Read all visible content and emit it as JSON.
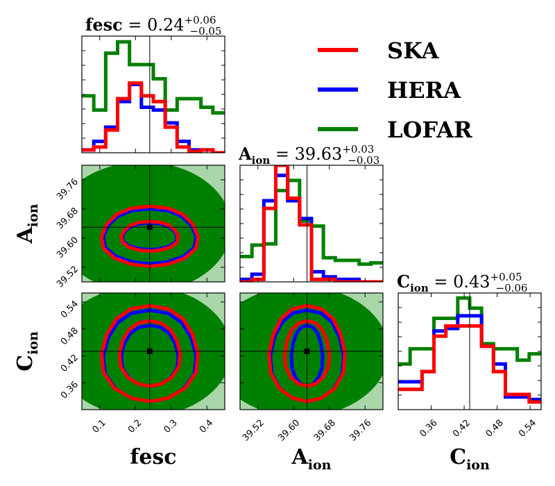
{
  "chart_data": {
    "type": "corner",
    "parameters": [
      {
        "name": "fesc",
        "sub": "",
        "range": [
          0.05,
          0.45
        ],
        "ticks": [
          "0.1",
          "0.2",
          "0.3",
          "0.4"
        ],
        "tick_values": [
          0.1,
          0.2,
          0.3,
          0.4
        ],
        "truth": 0.24,
        "title_value": "0.24",
        "err_plus": "+0.06",
        "err_minus": "−0.05"
      },
      {
        "name": "A",
        "sub": "ion",
        "range": [
          39.48,
          39.8
        ],
        "ticks": [
          "39.52",
          "39.60",
          "39.68",
          "39.76"
        ],
        "tick_values": [
          39.52,
          39.6,
          39.68,
          39.76
        ],
        "truth": 39.63,
        "title_value": "39.63",
        "err_plus": "+0.03",
        "err_minus": "−0.03"
      },
      {
        "name": "C",
        "sub": "ion",
        "range": [
          0.3,
          0.56
        ],
        "ticks": [
          "0.36",
          "0.42",
          "0.48",
          "0.54"
        ],
        "tick_values": [
          0.36,
          0.42,
          0.48,
          0.54
        ],
        "truth": 0.43,
        "title_value": "0.43",
        "err_plus": "+0.05",
        "err_minus": "−0.06"
      }
    ],
    "legend": [
      {
        "name": "SKA",
        "color": "#ff0000"
      },
      {
        "name": "HERA",
        "color": "#0000ff"
      },
      {
        "name": "LOFAR",
        "color": "#008000"
      }
    ],
    "marginals": [
      {
        "bins": 12,
        "series": [
          {
            "name": "LOFAR",
            "color": "#008000",
            "heights": [
              0.4,
              0.3,
              0.7,
              0.78,
              0.62,
              0.62,
              0.52,
              0.3,
              0.38,
              0.38,
              0.32,
              0.28
            ]
          },
          {
            "name": "HERA",
            "color": "#0000ff",
            "heights": [
              0.02,
              0.08,
              0.18,
              0.36,
              0.48,
              0.32,
              0.3,
              0.21,
              0.08,
              0.02,
              0.02,
              0.0
            ]
          },
          {
            "name": "SKA",
            "color": "#ff0000",
            "heights": [
              0.02,
              0.04,
              0.16,
              0.38,
              0.49,
              0.4,
              0.36,
              0.18,
              0.04,
              0.01,
              0.02,
              0.0
            ]
          }
        ],
        "ymax": 0.82
      },
      {
        "bins": 12,
        "series": [
          {
            "name": "LOFAR",
            "color": "#008000",
            "heights": [
              0.2,
              0.29,
              0.3,
              0.72,
              0.8,
              0.48,
              0.44,
              0.19,
              0.17,
              0.17,
              0.14,
              0.15
            ]
          },
          {
            "name": "HERA",
            "color": "#0000ff",
            "heights": [
              0.02,
              0.06,
              0.64,
              0.84,
              0.64,
              0.5,
              0.08,
              0.04,
              0.02,
              0.02,
              0.0,
              0.0
            ]
          },
          {
            "name": "SKA",
            "color": "#ff0000",
            "heights": [
              0.0,
              0.02,
              0.58,
              0.92,
              0.66,
              0.45,
              0.02,
              0.02,
              0.0,
              0.0,
              0.0,
              0.0
            ]
          }
        ],
        "ymax": 0.92
      },
      {
        "bins": 12,
        "series": [
          {
            "name": "LOFAR",
            "color": "#008000",
            "heights": [
              0.36,
              0.48,
              0.48,
              0.72,
              0.72,
              0.88,
              0.8,
              0.52,
              0.48,
              0.48,
              0.39,
              0.44
            ]
          },
          {
            "name": "HERA",
            "color": "#0000ff",
            "heights": [
              0.22,
              0.22,
              0.3,
              0.62,
              0.64,
              0.74,
              0.74,
              0.5,
              0.36,
              0.1,
              0.1,
              0.08
            ]
          },
          {
            "name": "SKA",
            "color": "#ff0000",
            "heights": [
              0.16,
              0.16,
              0.3,
              0.58,
              0.66,
              0.66,
              0.66,
              0.5,
              0.3,
              0.12,
              0.12,
              0.06
            ]
          }
        ],
        "ymax": 0.92
      }
    ],
    "joint": [
      {
        "row": 1,
        "col": 0,
        "ska_contours": [
          {
            "center": [
              0.24,
              39.605
            ],
            "rx": 0.135,
            "ry": 0.085
          },
          {
            "center": [
              0.24,
              39.605
            ],
            "rx": 0.08,
            "ry": 0.042
          }
        ],
        "hera_contours": [
          {
            "center": [
              0.24,
              39.605
            ],
            "rx": 0.13,
            "ry": 0.078
          },
          {
            "center": [
              0.24,
              39.605
            ],
            "rx": 0.077,
            "ry": 0.038
          }
        ]
      },
      {
        "row": 2,
        "col": 0,
        "ska_contours": [
          {
            "center": [
              0.24,
              0.425
            ],
            "rx": 0.135,
            "ry": 0.11
          },
          {
            "center": [
              0.24,
              0.425
            ],
            "rx": 0.085,
            "ry": 0.075
          }
        ],
        "hera_contours": [
          {
            "center": [
              0.24,
              0.42
            ],
            "rx": 0.13,
            "ry": 0.105
          },
          {
            "center": [
              0.24,
              0.42
            ],
            "rx": 0.08,
            "ry": 0.07
          }
        ]
      },
      {
        "row": 2,
        "col": 1,
        "ska_contours": [
          {
            "center": [
              39.63,
              0.425
            ],
            "rx": 0.085,
            "ry": 0.11
          },
          {
            "center": [
              39.63,
              0.425
            ],
            "rx": 0.05,
            "ry": 0.075
          }
        ],
        "hera_contours": [
          {
            "center": [
              39.63,
              0.42
            ],
            "rx": 0.082,
            "ry": 0.105
          },
          {
            "center": [
              39.63,
              0.42
            ],
            "rx": 0.035,
            "ry": 0.07
          }
        ]
      }
    ]
  }
}
